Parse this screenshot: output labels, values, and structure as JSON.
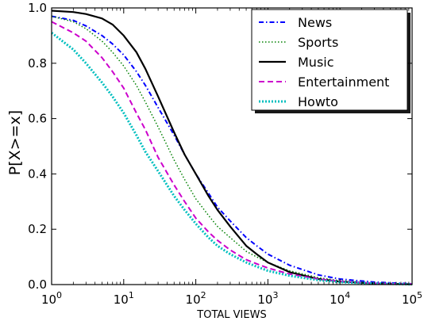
{
  "chart_data": {
    "type": "line",
    "title": "",
    "xlabel": "TOTAL VIEWS",
    "ylabel": "P[X>=x]",
    "xscale": "log",
    "xlim": [
      1,
      100000
    ],
    "ylim": [
      0,
      1.0
    ],
    "x_ticks": [
      {
        "value": 1,
        "mantissa": "10",
        "exp": "0"
      },
      {
        "value": 10,
        "mantissa": "10",
        "exp": "1"
      },
      {
        "value": 100,
        "mantissa": "10",
        "exp": "2"
      },
      {
        "value": 1000,
        "mantissa": "10",
        "exp": "3"
      },
      {
        "value": 10000,
        "mantissa": "10",
        "exp": "4"
      },
      {
        "value": 100000,
        "mantissa": "10",
        "exp": "5"
      }
    ],
    "y_ticks": [
      "0.0",
      "0.2",
      "0.4",
      "0.6",
      "0.8",
      "1.0"
    ],
    "grid": false,
    "legend_position": "top-right",
    "series": [
      {
        "name": "News",
        "color": "#0000ff",
        "style": "dashdot",
        "x": [
          1,
          2,
          3,
          5,
          7,
          10,
          15,
          20,
          30,
          50,
          70,
          100,
          150,
          200,
          300,
          500,
          700,
          1000,
          2000,
          5000,
          10000,
          30000,
          100000
        ],
        "y": [
          0.97,
          0.955,
          0.935,
          0.9,
          0.87,
          0.83,
          0.77,
          0.72,
          0.64,
          0.54,
          0.47,
          0.4,
          0.33,
          0.28,
          0.23,
          0.17,
          0.14,
          0.11,
          0.07,
          0.035,
          0.02,
          0.009,
          0.003
        ]
      },
      {
        "name": "Sports",
        "color": "#008000",
        "style": "dotted",
        "x": [
          1,
          2,
          3,
          5,
          7,
          10,
          15,
          20,
          30,
          50,
          70,
          100,
          150,
          200,
          300,
          500,
          700,
          1000,
          2000,
          5000,
          10000,
          30000,
          100000
        ],
        "y": [
          0.97,
          0.95,
          0.925,
          0.88,
          0.84,
          0.79,
          0.72,
          0.66,
          0.57,
          0.45,
          0.38,
          0.31,
          0.25,
          0.21,
          0.17,
          0.12,
          0.1,
          0.08,
          0.05,
          0.025,
          0.014,
          0.006,
          0.002
        ]
      },
      {
        "name": "Music",
        "color": "#000000",
        "style": "solid",
        "x": [
          1,
          2,
          3,
          5,
          7,
          10,
          15,
          20,
          30,
          50,
          70,
          100,
          150,
          200,
          300,
          500,
          700,
          1000,
          2000,
          5000,
          10000,
          30000,
          100000
        ],
        "y": [
          0.99,
          0.985,
          0.978,
          0.962,
          0.94,
          0.9,
          0.84,
          0.78,
          0.68,
          0.55,
          0.47,
          0.4,
          0.32,
          0.27,
          0.21,
          0.14,
          0.11,
          0.08,
          0.045,
          0.02,
          0.011,
          0.004,
          0.001
        ]
      },
      {
        "name": "Entertainment",
        "color": "#cc00cc",
        "style": "dashed",
        "x": [
          1,
          2,
          3,
          5,
          7,
          10,
          15,
          20,
          30,
          50,
          70,
          100,
          150,
          200,
          300,
          500,
          700,
          1000,
          2000,
          5000,
          10000,
          30000,
          100000
        ],
        "y": [
          0.95,
          0.91,
          0.88,
          0.82,
          0.77,
          0.71,
          0.62,
          0.56,
          0.46,
          0.36,
          0.3,
          0.24,
          0.19,
          0.16,
          0.125,
          0.09,
          0.075,
          0.06,
          0.038,
          0.02,
          0.012,
          0.005,
          0.002
        ]
      },
      {
        "name": "Howto",
        "color": "#00bfbf",
        "style": "dotted-thick",
        "x": [
          1,
          2,
          3,
          5,
          7,
          10,
          15,
          20,
          30,
          50,
          70,
          100,
          150,
          200,
          300,
          500,
          700,
          1000,
          2000,
          5000,
          10000,
          30000,
          100000
        ],
        "y": [
          0.91,
          0.85,
          0.8,
          0.73,
          0.68,
          0.62,
          0.54,
          0.48,
          0.41,
          0.32,
          0.27,
          0.22,
          0.17,
          0.14,
          0.11,
          0.08,
          0.065,
          0.05,
          0.032,
          0.016,
          0.009,
          0.004,
          0.001
        ]
      }
    ]
  }
}
